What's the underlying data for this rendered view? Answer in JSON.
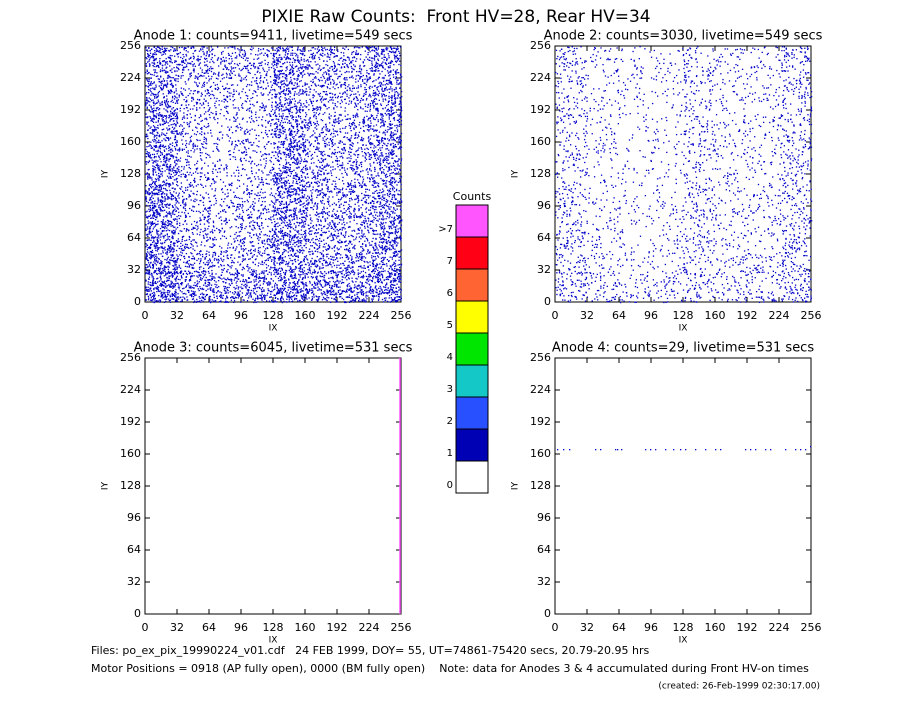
{
  "title": "PIXIE Raw Counts:  Front HV=28, Rear HV=34",
  "footer": [
    "Files: po_ex_pix_19990224_v01.cdf   24 FEB 1999, DOY= 55, UT=74861-75420 secs, 20.79-20.95 hrs",
    "Motor Positions = 0918 (AP fully open), 0000 (BM fully open)    Note: data for Anodes 3 & 4 accumulated during Front HV-on times",
    "(created: 26-Feb-1999 02:30:17.00)"
  ],
  "colorbar": {
    "title": "Counts",
    "levels": [
      {
        "label": "0",
        "color": "#ffffff"
      },
      {
        "label": "1",
        "color": "#0000b4"
      },
      {
        "label": "2",
        "color": "#2850ff"
      },
      {
        "label": "3",
        "color": "#14c8c8"
      },
      {
        "label": "4",
        "color": "#00e600"
      },
      {
        "label": "5",
        "color": "#ffff00"
      },
      {
        "label": "6",
        "color": "#ff6432"
      },
      {
        "label": "7",
        "color": "#ff0014"
      },
      {
        "label": ">7",
        "color": "#ff55ff"
      }
    ]
  },
  "chart_data": [
    {
      "type": "density",
      "title": "Anode 1: counts=9411, livetime=549 secs",
      "xlabel": "IX",
      "ylabel": "IY",
      "xlim": [
        0,
        256
      ],
      "ylim": [
        0,
        256
      ],
      "xticks": [
        0,
        32,
        64,
        96,
        128,
        160,
        192,
        224,
        256
      ],
      "yticks": [
        0,
        32,
        64,
        96,
        128,
        160,
        192,
        224,
        256
      ],
      "color": "#0000c8",
      "values": [
        [
          300,
          200,
          180,
          190,
          250,
          220,
          200,
          260
        ],
        [
          260,
          130,
          110,
          130,
          220,
          160,
          150,
          210
        ],
        [
          250,
          110,
          90,
          110,
          230,
          150,
          140,
          200
        ],
        [
          240,
          100,
          70,
          90,
          240,
          140,
          130,
          190
        ],
        [
          230,
          90,
          60,
          80,
          210,
          130,
          130,
          190
        ],
        [
          220,
          90,
          60,
          80,
          200,
          120,
          120,
          190
        ],
        [
          200,
          100,
          80,
          90,
          200,
          130,
          120,
          190
        ],
        [
          200,
          150,
          120,
          110,
          220,
          150,
          130,
          200
        ]
      ]
    },
    {
      "type": "density",
      "title": "Anode 2: counts=3030, livetime=549 secs",
      "xlabel": "IX",
      "ylabel": "IY",
      "xlim": [
        0,
        256
      ],
      "ylim": [
        0,
        256
      ],
      "xticks": [
        0,
        32,
        64,
        96,
        128,
        160,
        192,
        224,
        256
      ],
      "yticks": [
        0,
        32,
        64,
        96,
        128,
        160,
        192,
        224,
        256
      ],
      "color": "#0000c8",
      "values": [
        [
          90,
          60,
          50,
          55,
          70,
          60,
          60,
          100
        ],
        [
          70,
          40,
          30,
          35,
          60,
          45,
          45,
          80
        ],
        [
          65,
          35,
          25,
          30,
          60,
          40,
          40,
          70
        ],
        [
          60,
          30,
          20,
          25,
          60,
          35,
          35,
          70
        ],
        [
          60,
          30,
          20,
          25,
          55,
          35,
          35,
          70
        ],
        [
          60,
          30,
          20,
          25,
          55,
          35,
          35,
          70
        ],
        [
          60,
          30,
          25,
          25,
          55,
          35,
          35,
          70
        ],
        [
          70,
          40,
          30,
          30,
          60,
          40,
          40,
          80
        ]
      ]
    },
    {
      "type": "line",
      "title": "Anode 3: counts=6045, livetime=531 secs",
      "xlabel": "IX",
      "ylabel": "IY",
      "xlim": [
        0,
        256
      ],
      "ylim": [
        0,
        256
      ],
      "xticks": [
        0,
        32,
        64,
        96,
        128,
        160,
        192,
        224,
        256
      ],
      "yticks": [
        0,
        32,
        64,
        96,
        128,
        160,
        192,
        224,
        256
      ],
      "color": "#ff55ff",
      "x": [
        255,
        255
      ],
      "y": [
        0,
        256
      ]
    },
    {
      "type": "scatter",
      "title": "Anode 4: counts=29, livetime=531 secs",
      "xlabel": "IX",
      "ylabel": "IY",
      "xlim": [
        0,
        256
      ],
      "ylim": [
        0,
        256
      ],
      "xticks": [
        0,
        32,
        64,
        96,
        128,
        160,
        192,
        224,
        256
      ],
      "yticks": [
        0,
        32,
        64,
        96,
        128,
        160,
        192,
        224,
        256
      ],
      "color": "#0000c8",
      "x": [
        2,
        8,
        14,
        40,
        45,
        60,
        62,
        66,
        90,
        95,
        100,
        110,
        118,
        125,
        130,
        140,
        150,
        160,
        165,
        190,
        195,
        200,
        210,
        215,
        230,
        240,
        245,
        250,
        255
      ],
      "y": [
        165,
        165,
        165,
        165,
        165,
        165,
        165,
        165,
        165,
        165,
        165,
        165,
        165,
        165,
        165,
        165,
        165,
        165,
        165,
        165,
        165,
        165,
        165,
        165,
        165,
        165,
        165,
        165,
        168
      ]
    }
  ]
}
